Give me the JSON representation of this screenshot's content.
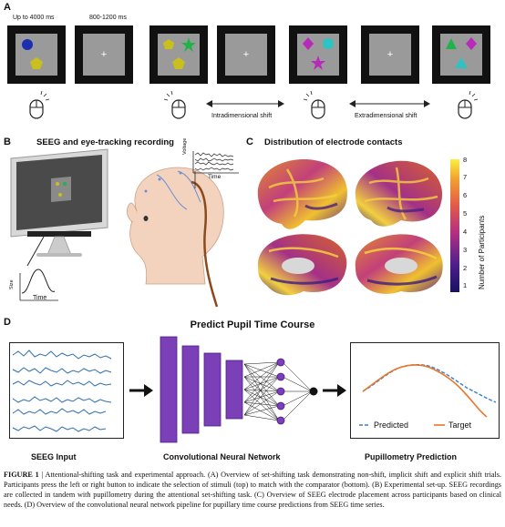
{
  "panelA": {
    "letter": "A",
    "time_label_1": "Up to 4000 ms",
    "time_label_2": "800-1200 ms",
    "intradimensional": "Intradimensional shift",
    "extradimensional": "Extradimensional shift",
    "fixation": "+"
  },
  "panelB": {
    "letter": "B",
    "title": "SEEG and eye-tracking recording",
    "voltage": "Voltage",
    "time": "Time",
    "area_axis": "Size",
    "time_small": "Time"
  },
  "panelC": {
    "letter": "C",
    "title": "Distribution of electrode contacts",
    "colorbar_label": "Number of Participants",
    "ticks": [
      "1",
      "2",
      "3",
      "4",
      "5",
      "6",
      "7",
      "8"
    ]
  },
  "panelD": {
    "letter": "D",
    "title": "Predict Pupil Time Course",
    "input_label": "SEEG Input",
    "cnn_label": "Convolutional Neural Network",
    "output_label": "Pupillometry Prediction",
    "legend_predicted": "Predicted",
    "legend_target": "Target"
  },
  "colors": {
    "blue_circle": "#1a2fb0",
    "yellow": "#c9c020",
    "green": "#20b34a",
    "magenta": "#b82bb8",
    "cyan": "#2ec3c3",
    "purple_cnn": "#7b3fb8",
    "seeg_blue": "#2f6fb0",
    "target_orange": "#e8762c",
    "predicted_blue": "#3a7fc4"
  },
  "caption": {
    "label": "FIGURE 1",
    "text": " | Attentional-shifting task and experimental approach. (A) Overview of set-shifting task demonstrating non-shift, implicit shift and explicit shift trials. Participants press the left or right button to indicate the selection of stimuli (top) to match with the comparator (bottom). (B) Experimental set-up. SEEG recordings are collected in tandem with pupillometry during the attentional set-shifting task. (C) Overview of SEEG electrode placement across participants based on clinical needs. (D) Overview of the convolutional neural network pipeline for pupillary time course predictions from SEEG time series."
  }
}
